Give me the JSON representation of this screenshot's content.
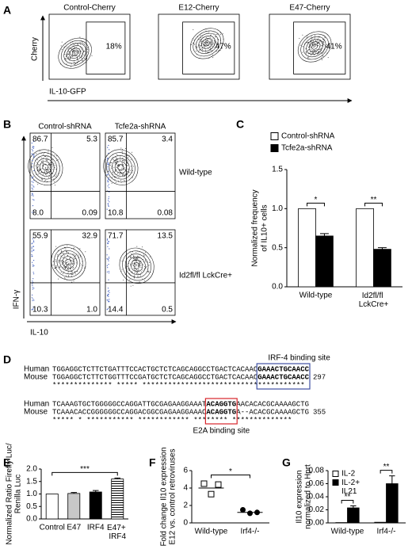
{
  "panel_a": {
    "label": "A",
    "ylabel": "Cherry",
    "xlabel": "IL-10-GFP",
    "plots": [
      {
        "title": "Control-Cherry",
        "percent": "18%"
      },
      {
        "title": "E12-Cherry",
        "percent": "47%"
      },
      {
        "title": "E47-Cherry",
        "percent": "41%"
      }
    ]
  },
  "panel_b": {
    "label": "B",
    "columns": [
      "Control-shRNA",
      "Tcfe2a-shRNA"
    ],
    "rows": [
      "Wild-type",
      "Id2fl/fl LckCre+"
    ],
    "ylabel": "IFN-γ",
    "xlabel": "IL-10",
    "quadrants": [
      [
        [
          "86.7",
          "5.3",
          "8.0",
          "0.09"
        ],
        [
          "85.7",
          "3.4",
          "10.8",
          "0.08"
        ]
      ],
      [
        [
          "55.9",
          "32.9",
          "10.3",
          "1.0"
        ],
        [
          "71.7",
          "13.5",
          "14.4",
          "0.5"
        ]
      ]
    ]
  },
  "panel_d": {
    "label": "D",
    "blocks": [
      {
        "rows": [
          {
            "name": "Human",
            "seq": [
              "TGGAGGCTCTTCTGATTTCCACTGCTCTCAGCAGGCCTGACTCACAAC",
              "GAAACTGCAACC"
            ]
          },
          {
            "name": "Mouse",
            "seq": [
              "TGGAGGCTCTTCTGGTTTCCGATGCTCTCAGCAGGCCTGACTCACAAC",
              "GAAACTGCAACC"
            ],
            "end": "297"
          }
        ],
        "stars": "************** *****  **************************************",
        "site": "IRF-4 binding site",
        "color": "#3f51a3"
      },
      {
        "rows": [
          {
            "name": "Human",
            "seq": [
              "TCAAAGTGCTGGGGGCCAGGATTGCGAGAAGGAAAT",
              "ACAGGTG",
              "AACACACGCAAAAGCTG"
            ]
          },
          {
            "name": "Mouse",
            "seq": [
              "TCAAACACCGGGGGGCCAGGACGGCGAGAAGGAAAC",
              "ACAGGTG",
              "A--ACACGCAAAAGCTG"
            ],
            "end": "355"
          }
        ],
        "stars": "*****   * ***********  ************ ********  **************",
        "site": "E2A binding site",
        "color": "#d7262b"
      }
    ]
  },
  "chart_data": [
    {
      "label": "C",
      "type": "bar",
      "ylabel": [
        "Normalized  frequency",
        "of IL10+ cells"
      ],
      "categories": [
        "Wild-type",
        "Id2fl/fl LckCre+"
      ],
      "series": [
        {
          "name": "Control-shRNA",
          "color": "#ffffff",
          "values": [
            1.0,
            1.0
          ]
        },
        {
          "name": "Tcfe2a-shRNA",
          "color": "#000000",
          "values": [
            0.65,
            0.48
          ],
          "errors": [
            0.03,
            0.02
          ]
        }
      ],
      "ylim": [
        0,
        1.5
      ],
      "yticks": [
        {
          "value": 0,
          "label": "0.0"
        },
        0.5,
        {
          "value": 1,
          "label": "1.0"
        },
        1.5
      ],
      "legend": "top",
      "annotations": [
        {
          "text": "*",
          "category": 0
        },
        {
          "text": "**",
          "category": 1
        }
      ]
    },
    {
      "label": "E",
      "type": "bar",
      "ylabel": [
        "Normalized Ratio Firefly Luc/",
        "Renilla Luc"
      ],
      "categories": [
        "Control",
        "E47",
        "IRF4",
        "E47+ IRF4"
      ],
      "series": [
        {
          "values": [
            1.0,
            1.02,
            1.08,
            1.6
          ],
          "errors": [
            null,
            0.04,
            0.06,
            0.04
          ],
          "colors": [
            "#ffffff",
            "#c8c8c8",
            "#000000",
            "hatch"
          ]
        }
      ],
      "ylim": [
        0,
        2
      ],
      "yticks": [
        {
          "value": 0,
          "label": "0.0"
        },
        0.5,
        {
          "value": 1,
          "label": "1.0"
        },
        1.5,
        {
          "value": 2,
          "label": "2.0"
        }
      ],
      "annotations": [
        {
          "text": "***",
          "from": 0,
          "to": 3
        }
      ]
    },
    {
      "label": "F",
      "type": "dot",
      "ylabel": [
        "Fold change Il10 expression",
        "E12 vs. control retroviruses"
      ],
      "categories": [
        "Wild-type",
        "Irf4-/-"
      ],
      "points": [
        [
          4.5,
          3.3,
          4.4
        ],
        [
          1.5,
          1.1,
          1.2
        ]
      ],
      "markers": [
        "square",
        "circle"
      ],
      "means": [
        4.0,
        1.2
      ],
      "ylim": [
        0,
        6
      ],
      "yticks": [
        0,
        2,
        4,
        6
      ],
      "annotations": [
        {
          "text": "*",
          "from": 0,
          "to": 1
        }
      ]
    },
    {
      "label": "G",
      "type": "bar",
      "ylabel": [
        "Il10 expression",
        "normalized to Hprt"
      ],
      "categories": [
        "Wild-type",
        "Irf4-/-"
      ],
      "series": [
        {
          "name": "IL-2",
          "color": "#ffffff",
          "values": [
            0.0005,
            0.001
          ]
        },
        {
          "name": "IL-2+ IL21",
          "color": "#000000",
          "values": [
            0.023,
            0.06
          ],
          "errors": [
            0.003,
            0.012
          ]
        }
      ],
      "ylim": [
        0,
        0.08
      ],
      "yticks": [
        {
          "value": 0,
          "label": "0.00"
        },
        {
          "value": 0.02,
          "label": "0.02"
        },
        {
          "value": 0.04,
          "label": "0.04"
        },
        {
          "value": 0.06,
          "label": "0.06"
        },
        {
          "value": 0.08,
          "label": "0.08"
        }
      ],
      "legend": "upper left",
      "annotations": [
        {
          "text": "**",
          "category": 0
        },
        {
          "text": "**",
          "category": 1
        }
      ]
    }
  ]
}
